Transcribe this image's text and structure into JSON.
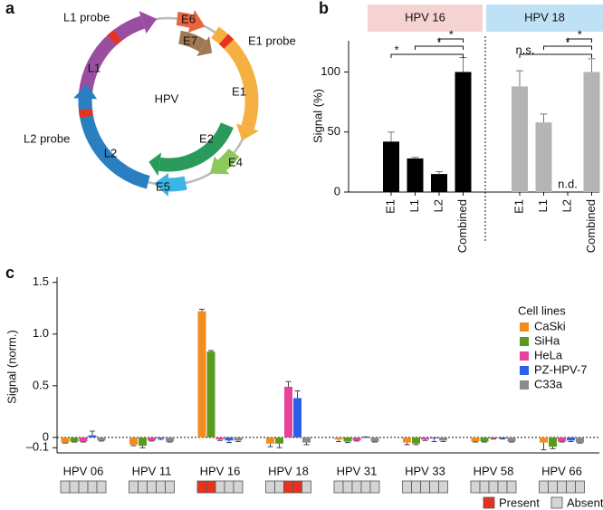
{
  "panels": [
    "a",
    "b",
    "c"
  ],
  "diagram": {
    "center": "HPV",
    "labels": [
      "L1 probe",
      "E6",
      "E1 probe",
      "E7",
      "E1",
      "L1",
      "L2 probe",
      "L2",
      "E2",
      "E4",
      "E5"
    ]
  },
  "chart_data": [
    {
      "type": "bar",
      "ylabel": "Signal (%)",
      "categories": [
        "E1",
        "L1",
        "L2",
        "Combined"
      ],
      "series": [
        {
          "name": "HPV 16",
          "color": "#000000",
          "header_color": "#f6d3d3",
          "values": [
            42,
            28,
            15,
            100
          ],
          "errors": [
            8,
            1,
            2,
            12
          ],
          "significance": [
            "*",
            "*",
            "*"
          ]
        },
        {
          "name": "HPV 18",
          "color": "#b4b4b4",
          "header_color": "#bfe1f6",
          "values": [
            88,
            58,
            null,
            100
          ],
          "errors": [
            13,
            7,
            null,
            11
          ],
          "value_labels": [
            null,
            null,
            "n.d.",
            null
          ],
          "significance": [
            "n.s.",
            "*",
            "*"
          ]
        }
      ],
      "ylim": [
        0,
        126
      ],
      "yticks": [
        0,
        50,
        100
      ]
    },
    {
      "type": "grouped_bar",
      "ylabel": "Signal (norm.)",
      "legend_title": "Cell lines",
      "legend": "upper right",
      "zero_line": true,
      "categories": [
        "HPV 06",
        "HPV 11",
        "HPV 16",
        "HPV 18",
        "HPV 31",
        "HPV 33",
        "HPV 58",
        "HPV 66"
      ],
      "series": [
        {
          "name": "CaSki",
          "color": "#f28c1e",
          "values": [
            -0.05,
            -0.07,
            1.22,
            -0.06,
            -0.02,
            -0.05,
            -0.04,
            -0.05
          ],
          "errors": [
            0.005,
            0.01,
            0.02,
            0.03,
            0.02,
            0.02,
            0.005,
            0.07
          ]
        },
        {
          "name": "SiHa",
          "color": "#5a9a1e",
          "values": [
            -0.04,
            -0.08,
            0.83,
            -0.06,
            -0.04,
            -0.06,
            -0.04,
            -0.09
          ],
          "errors": [
            0.005,
            0.02,
            0.01,
            0.04,
            0.01,
            0.01,
            0.005,
            0.02
          ]
        },
        {
          "name": "HeLa",
          "color": "#e8439a",
          "values": [
            -0.04,
            -0.03,
            -0.02,
            0.49,
            -0.03,
            -0.02,
            -0.01,
            -0.04
          ],
          "errors": [
            0.005,
            0.005,
            0.01,
            0.05,
            0.005,
            0.01,
            0.005,
            0.005
          ]
        },
        {
          "name": "PZ-HPV-7",
          "color": "#2e5fe8",
          "values": [
            0.02,
            -0.01,
            -0.03,
            0.38,
            0.0,
            -0.01,
            -0.01,
            -0.03
          ],
          "errors": [
            0.04,
            0.01,
            0.02,
            0.07,
            0.005,
            0.03,
            0.005,
            0.01
          ]
        },
        {
          "name": "C33a",
          "color": "#8a8a8a",
          "values": [
            -0.03,
            -0.04,
            -0.03,
            -0.05,
            -0.04,
            -0.03,
            -0.04,
            -0.05
          ],
          "errors": [
            0.005,
            0.005,
            0.01,
            0.02,
            0.005,
            0.01,
            0.005,
            0.005
          ]
        }
      ],
      "presence": [
        [
          false,
          false,
          false,
          false,
          false
        ],
        [
          false,
          false,
          false,
          false,
          false
        ],
        [
          true,
          true,
          false,
          false,
          false
        ],
        [
          false,
          false,
          true,
          true,
          false
        ],
        [
          false,
          false,
          false,
          false,
          false
        ],
        [
          false,
          false,
          false,
          false,
          false
        ],
        [
          false,
          false,
          false,
          false,
          false
        ],
        [
          false,
          false,
          false,
          false,
          false
        ]
      ],
      "presence_legend": [
        {
          "label": "Present",
          "color": "#e8321e"
        },
        {
          "label": "Absent",
          "color": "#d4d4d4"
        }
      ],
      "ylim": [
        -0.15,
        1.55
      ],
      "yticks": [
        {
          "value": -0.1,
          "label": "–0.1"
        },
        0,
        0.5,
        {
          "value": 1,
          "label": "1.0"
        },
        1.5
      ]
    }
  ]
}
